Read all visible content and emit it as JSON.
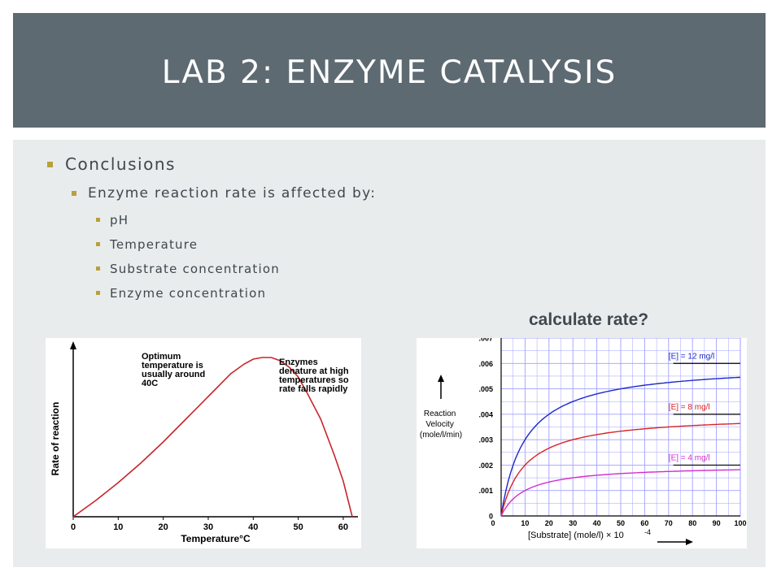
{
  "slide": {
    "title": "LAB 2: ENZYME CATALYSIS",
    "bullet_l1": "Conclusions",
    "bullet_l2": "Enzyme reaction rate is affected by:",
    "bullets_l3": [
      "pH",
      "Temperature",
      "Substrate  concentration",
      "Enzyme  concentration"
    ],
    "question": "calculate rate?"
  },
  "colors": {
    "title_bar": "#5e6a72",
    "panel": "#e8ecec",
    "bullet": "#b9a03a"
  },
  "chart_data": [
    {
      "type": "line",
      "xlabel": "Temperature°C",
      "ylabel": "Rate of reaction",
      "x_ticks": [
        "0",
        "10",
        "20",
        "30",
        "40",
        "50",
        "60"
      ],
      "xlim": [
        0,
        62
      ],
      "series": [
        {
          "x": [
            0,
            5,
            10,
            15,
            20,
            25,
            30,
            35,
            38,
            40,
            42,
            44,
            46,
            48,
            50,
            52,
            55,
            58,
            60,
            62
          ],
          "y": [
            0,
            10,
            21,
            33,
            46,
            60,
            74,
            88,
            94,
            97,
            98,
            98,
            96,
            92,
            86,
            76,
            60,
            38,
            22,
            0
          ]
        }
      ],
      "annotations": [
        {
          "lines": [
            "Optimum",
            "temperature is",
            "usually around",
            "40C"
          ]
        },
        {
          "lines": [
            "Enzymes",
            "denature at high",
            "temperatures so",
            "rate falls rapidly"
          ]
        }
      ]
    },
    {
      "type": "line",
      "ylabel_lines": [
        "Reaction",
        "Velocity",
        "(mole/l/min)"
      ],
      "xlabel": "[Substrate] (mole/l)  × 10",
      "xlabel_exp": "-4",
      "xlim": [
        0,
        100
      ],
      "ylim": [
        0,
        0.007
      ],
      "x_ticks": [
        "0",
        "10",
        "20",
        "30",
        "40",
        "50",
        "60",
        "70",
        "80",
        "90",
        "100"
      ],
      "y_ticks": [
        "0",
        ".001",
        ".002",
        ".003",
        ".004",
        ".005",
        ".006",
        ".007"
      ],
      "grid": true,
      "series": [
        {
          "name": "[E] = 12 mg/l",
          "color": "#1c28c8",
          "vmax": 0.006,
          "km": 10
        },
        {
          "name": "[E] = 8 mg/l",
          "color": "#d82424",
          "vmax": 0.004,
          "km": 10
        },
        {
          "name": "[E] = 4 mg/l",
          "color": "#d42cc8",
          "vmax": 0.002,
          "km": 10
        }
      ]
    }
  ]
}
